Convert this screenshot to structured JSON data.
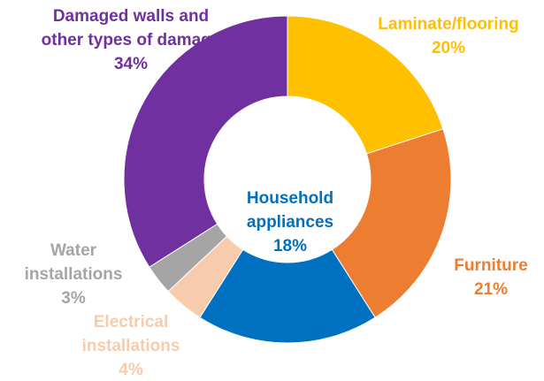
{
  "chart_data": {
    "type": "donut",
    "categories": [
      "Laminate/flooring",
      "Furniture",
      "Household appliances",
      "Electrical installations",
      "Water installations",
      "Damaged walls and other types of damage"
    ],
    "values": [
      20,
      21,
      18,
      4,
      3,
      34
    ],
    "value_labels": [
      "20%",
      "21%",
      "18%",
      "4%",
      "3%",
      "34%"
    ],
    "colors": [
      "#FFC000",
      "#ED7D31",
      "#0070C0",
      "#F8CBAD",
      "#A5A5A5",
      "#7030A0"
    ]
  }
}
